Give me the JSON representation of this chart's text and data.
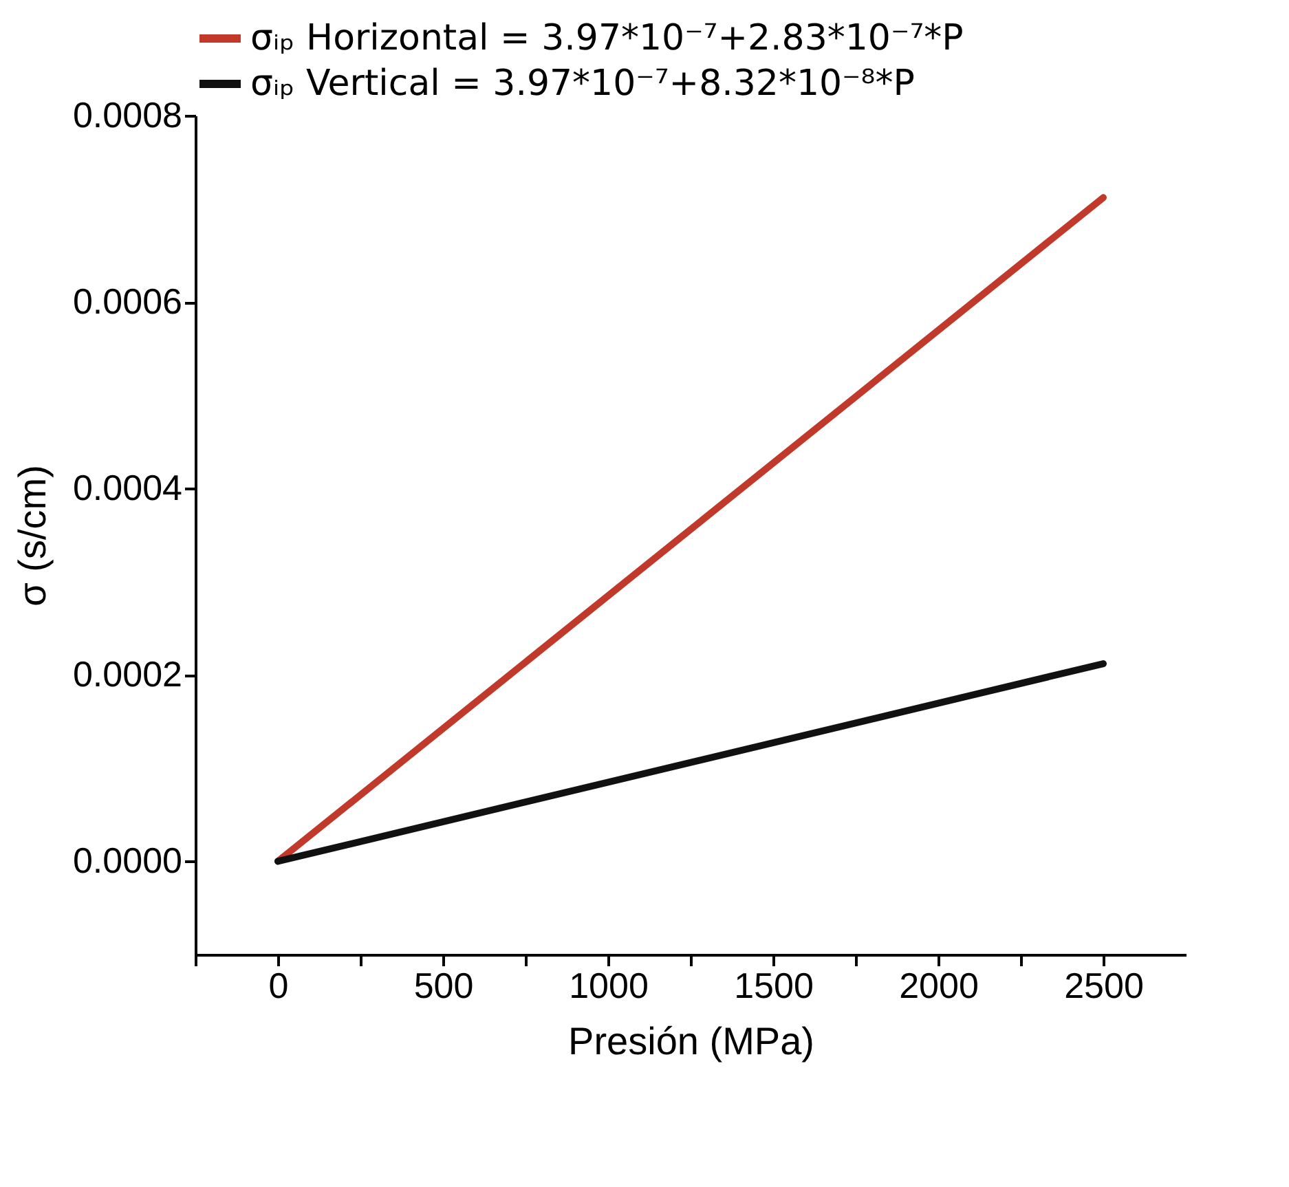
{
  "chart_data": {
    "type": "line",
    "xlabel": "Presión (MPa)",
    "ylabel": "σ (s/cm)",
    "x": [
      0,
      2500
    ],
    "series": [
      {
        "name": "σᵢₚ Horizontal   = 3.97*10⁻⁷+2.83*10⁻⁷*P",
        "color": "#c0392b",
        "values": [
          0,
          0.000712
        ]
      },
      {
        "name": "σᵢₚ Vertical       = 3.97*10⁻⁷+8.32*10⁻⁸*P",
        "color": "#111111",
        "values": [
          0,
          0.000212
        ]
      }
    ],
    "xlim": [
      -250,
      2750
    ],
    "ylim": [
      -0.0001,
      0.0008
    ],
    "xticks": [
      {
        "value": -250,
        "label": null
      },
      0,
      {
        "value": 250,
        "label": null
      },
      500,
      {
        "value": 750,
        "label": null
      },
      1000,
      {
        "value": 1250,
        "label": null
      },
      1500,
      {
        "value": 1750,
        "label": null
      },
      2000,
      {
        "value": 2250,
        "label": null
      },
      2500
    ],
    "yticks": [
      {
        "value": 0,
        "label": "0.0000"
      },
      {
        "value": 0.0002,
        "label": "0.0002"
      },
      {
        "value": 0.0004,
        "label": "0.0004"
      },
      {
        "value": 0.0006,
        "label": "0.0006"
      },
      {
        "value": 0.0008,
        "label": "0.0008"
      }
    ],
    "grid": false,
    "legend": "top",
    "marker": "none",
    "line_style": "solid"
  }
}
